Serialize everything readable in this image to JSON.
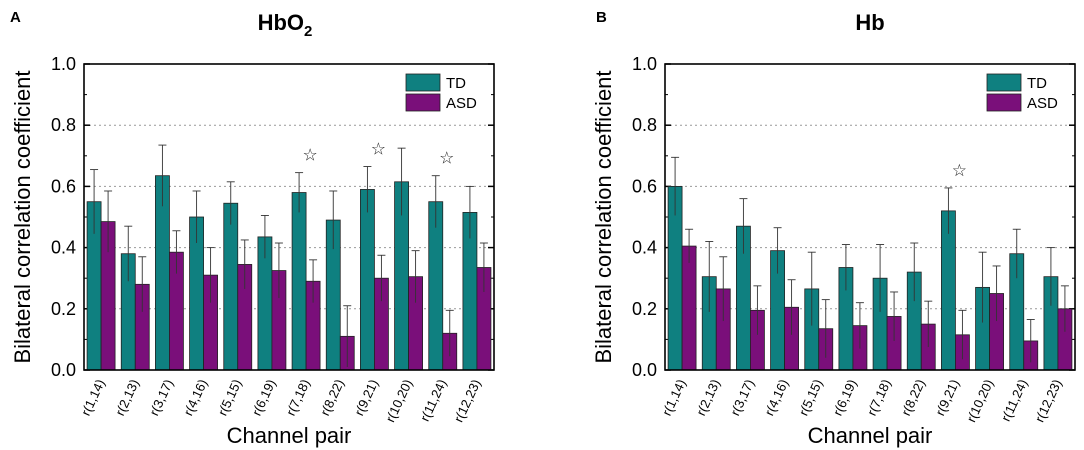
{
  "chart_data": [
    {
      "type": "bar",
      "panel": "A",
      "title_main": "HbO",
      "title_sub": "2",
      "xlabel": "Channel pair",
      "ylabel": "Bilateral correlation coefficient",
      "ylim": [
        0,
        1.0
      ],
      "yticks": [
        "0.0",
        "0.2",
        "0.4",
        "0.6",
        "0.8",
        "1.0"
      ],
      "grid": "horizontal dotted",
      "legend_position": "top-right",
      "categories": [
        "r(1,14)",
        "r(2,13)",
        "r(3,17)",
        "r(4,16)",
        "r(5,15)",
        "r(6,19)",
        "r(7,18)",
        "r(8,22)",
        "r(9,21)",
        "r(10,20)",
        "r(11,24)",
        "r(12,23)"
      ],
      "series": [
        {
          "name": "TD",
          "color": "#0f8080",
          "values": [
            0.55,
            0.38,
            0.635,
            0.5,
            0.545,
            0.435,
            0.58,
            0.49,
            0.59,
            0.615,
            0.55,
            0.515
          ],
          "errors": [
            0.105,
            0.09,
            0.1,
            0.085,
            0.07,
            0.07,
            0.065,
            0.095,
            0.075,
            0.11,
            0.085,
            0.085
          ]
        },
        {
          "name": "ASD",
          "color": "#7a0f7a",
          "values": [
            0.485,
            0.28,
            0.385,
            0.31,
            0.345,
            0.325,
            0.29,
            0.11,
            0.3,
            0.305,
            0.12,
            0.335
          ],
          "errors": [
            0.1,
            0.09,
            0.07,
            0.09,
            0.08,
            0.09,
            0.07,
            0.1,
            0.075,
            0.085,
            0.075,
            0.08
          ]
        }
      ],
      "significance_marker": "☆",
      "significant": [
        "r(7,18)",
        "r(9,21)",
        "r(11,24)"
      ]
    },
    {
      "type": "bar",
      "panel": "B",
      "title_main": "Hb",
      "title_sub": "",
      "xlabel": "Channel pair",
      "ylabel": "Bilateral correlation coefficient",
      "ylim": [
        0,
        1.0
      ],
      "yticks": [
        "0.0",
        "0.2",
        "0.4",
        "0.6",
        "0.8",
        "1.0"
      ],
      "grid": "horizontal dotted",
      "legend_position": "top-right",
      "categories": [
        "r(1,14)",
        "r(2,13)",
        "r(3,17)",
        "r(4,16)",
        "r(5,15)",
        "r(6,19)",
        "r(7,18)",
        "r(8,22)",
        "r(9,21)",
        "r(10,20)",
        "r(11,24)",
        "r(12,23)"
      ],
      "series": [
        {
          "name": "TD",
          "color": "#0f8080",
          "values": [
            0.6,
            0.305,
            0.47,
            0.39,
            0.265,
            0.335,
            0.3,
            0.32,
            0.52,
            0.27,
            0.38,
            0.305
          ],
          "errors": [
            0.095,
            0.115,
            0.09,
            0.075,
            0.12,
            0.075,
            0.11,
            0.095,
            0.075,
            0.115,
            0.08,
            0.095
          ]
        },
        {
          "name": "ASD",
          "color": "#7a0f7a",
          "values": [
            0.405,
            0.265,
            0.195,
            0.205,
            0.135,
            0.145,
            0.175,
            0.15,
            0.115,
            0.25,
            0.095,
            0.2
          ],
          "errors": [
            0.055,
            0.105,
            0.08,
            0.09,
            0.095,
            0.075,
            0.08,
            0.075,
            0.08,
            0.09,
            0.07,
            0.075
          ]
        }
      ],
      "significance_marker": "☆",
      "significant": [
        "r(9,21)"
      ]
    }
  ]
}
